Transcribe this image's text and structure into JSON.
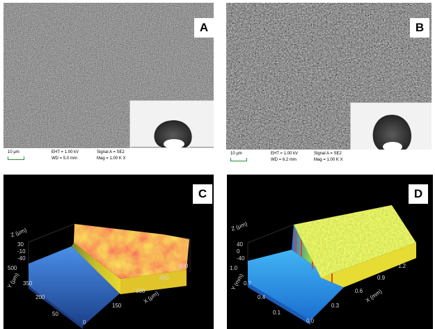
{
  "panels": {
    "a": {
      "label": "A",
      "scale": "10 μm",
      "eht": "EHT = 1.00 kV",
      "wd": "WD = 5.0 mm",
      "signal": "Signal A = SE2",
      "mag": "Mag = 1.00 K X"
    },
    "b": {
      "label": "B",
      "scale": "10 μm",
      "eht": "EHT = 1.00 kV",
      "wd": "WD = 6.2 mm",
      "signal": "Signal A = SE2",
      "mag": "Mag = 1.00 K X"
    },
    "c": {
      "label": "C",
      "z_axis": "Z (μm)",
      "z_ticks": [
        "30",
        "-10",
        "-40"
      ],
      "y_axis": "Y (μm)",
      "y_ticks": [
        "500",
        "350",
        "200",
        "50"
      ],
      "x_axis": "X (μm)",
      "x_ticks": [
        "0",
        "150",
        "300",
        "450",
        "600"
      ]
    },
    "d": {
      "label": "D",
      "z_axis": "Z (μm)",
      "z_ticks": [
        "40",
        "0",
        "-40"
      ],
      "y_axis": "Y (mm)",
      "y_ticks": [
        "1.0",
        "0.7",
        "0.4",
        "0.1"
      ],
      "x_axis": "X (mm)",
      "x_ticks": [
        "0.0",
        "0.3",
        "0.6",
        "0.9",
        "1.2"
      ]
    }
  },
  "colors": {
    "sem_gray": "#6d6d6d",
    "profile_bg": "#000000",
    "c_surface": "#f0a028",
    "d_surface": "#ecec3a",
    "base": "#3a78d8"
  }
}
